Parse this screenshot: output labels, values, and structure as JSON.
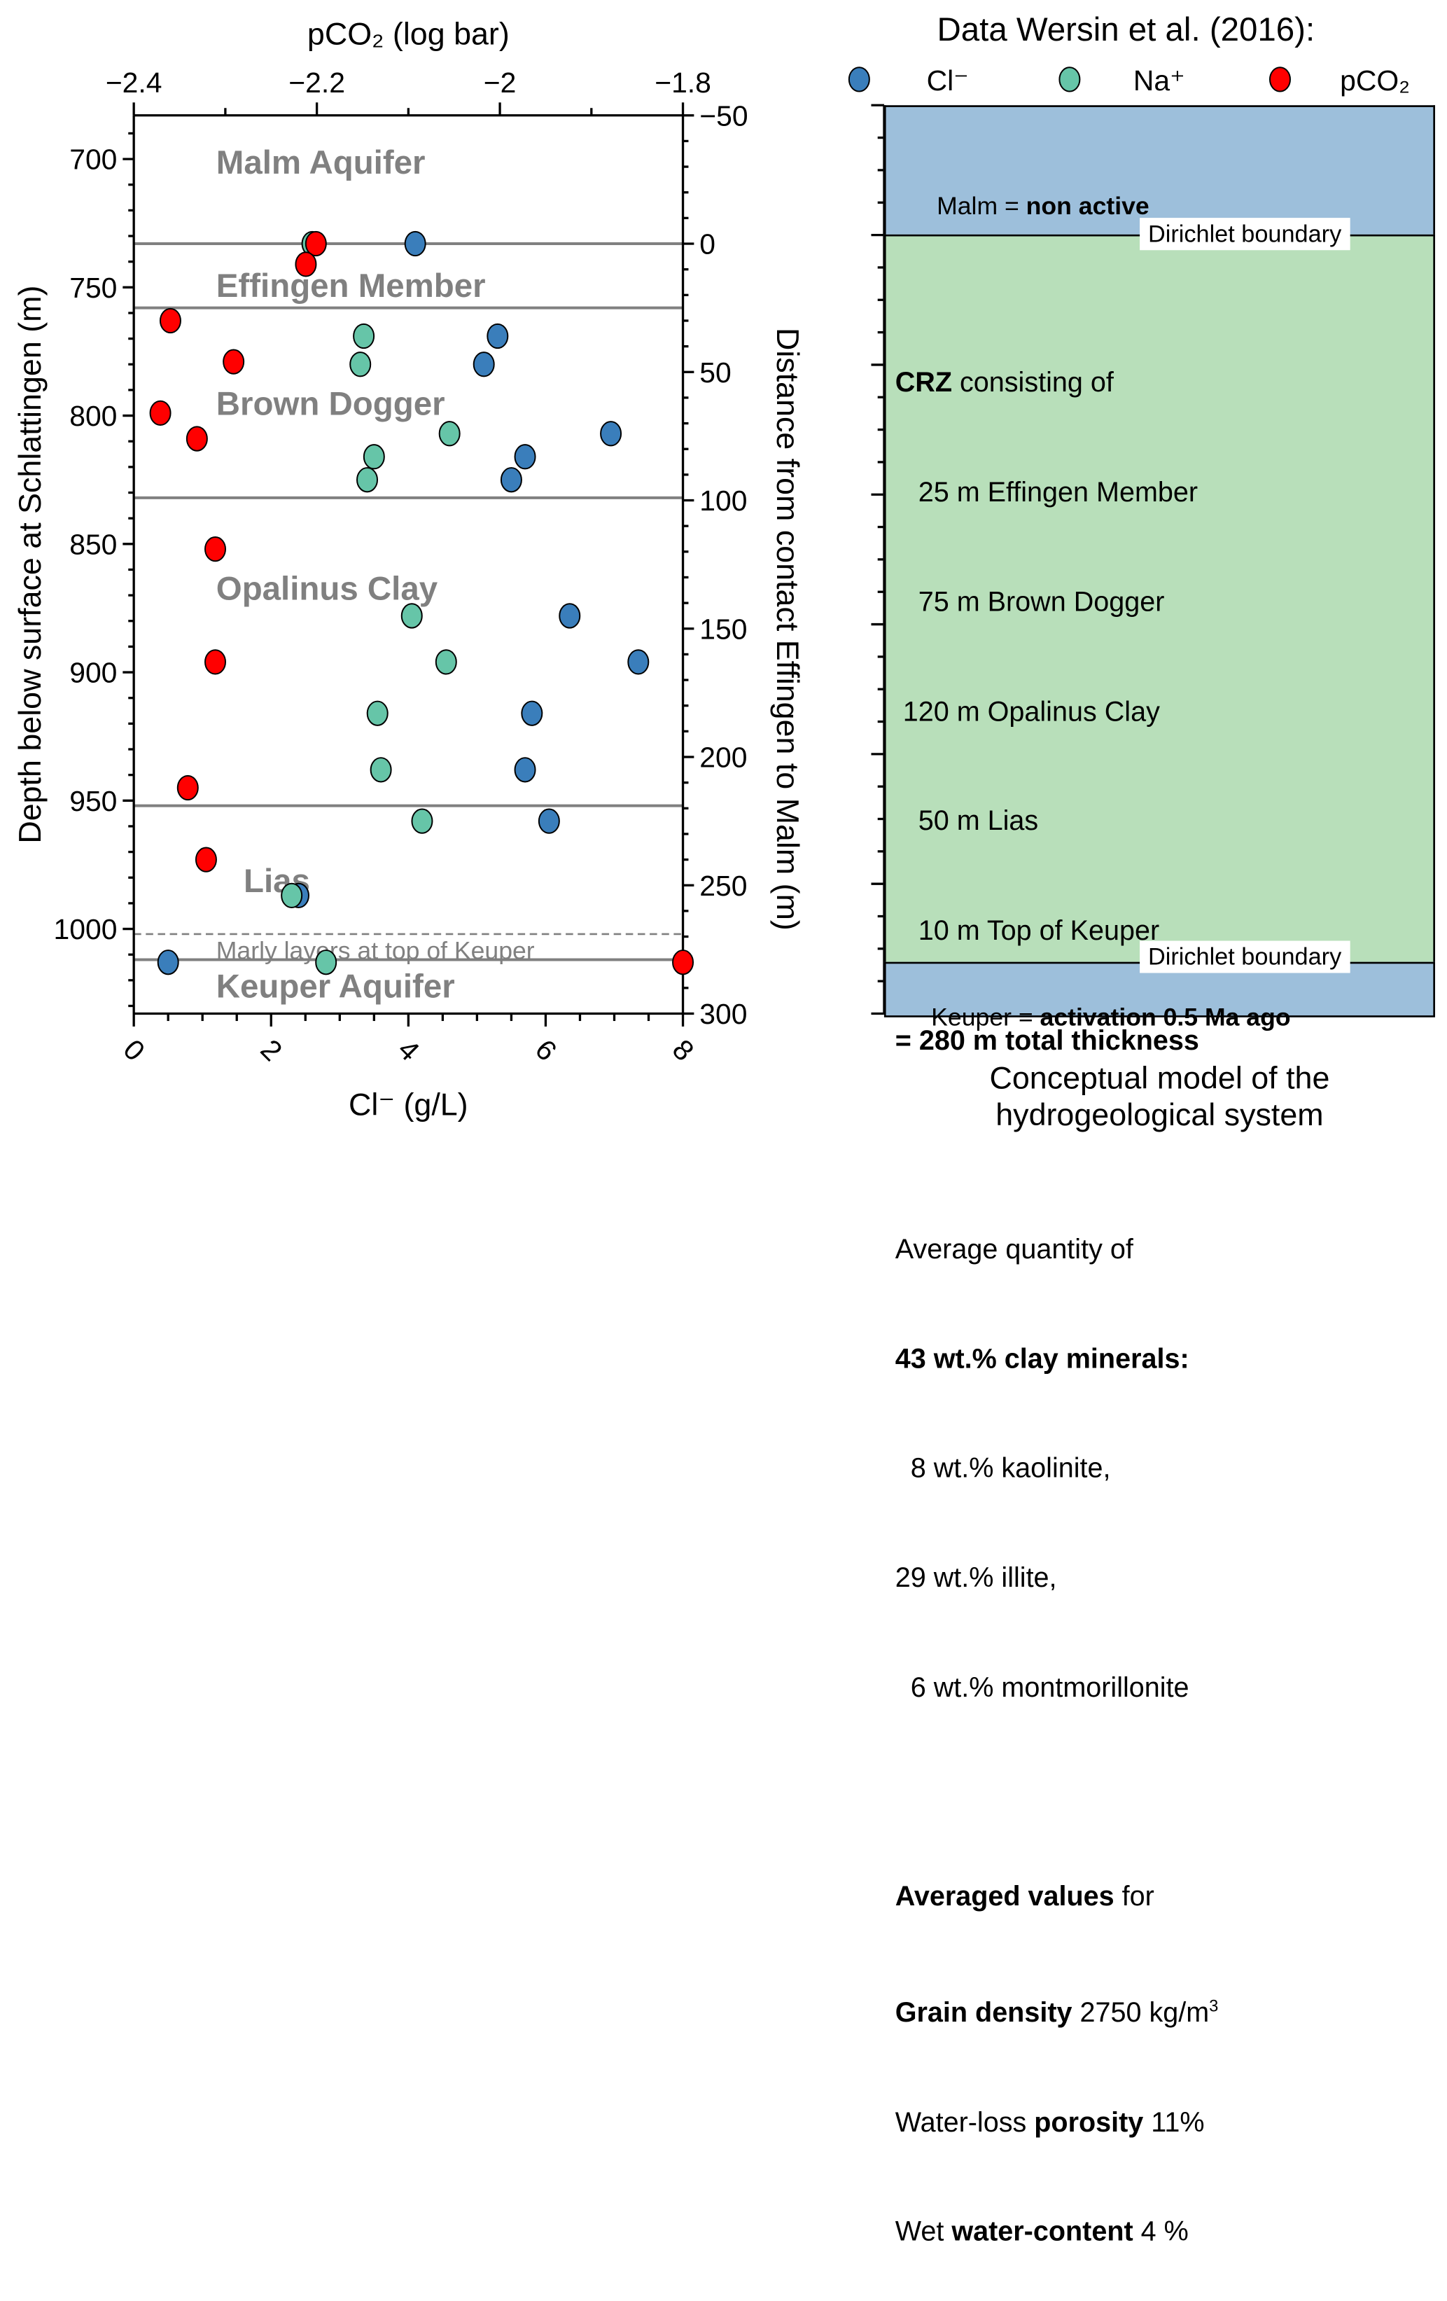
{
  "chart_data": {
    "type": "scatter",
    "title": "",
    "xlabel_bottom": "Cl⁻ (g/L)",
    "xlabel_top": "pCO₂ (log bar)",
    "ylabel_left": "Depth below surface at Schlattingen (m)",
    "ylabel_right": "Distance from contact Effingen to Malm (m)",
    "x_bottom_range": [
      0,
      8
    ],
    "x_bottom_ticks": [
      "0",
      "2",
      "4",
      "6",
      "8"
    ],
    "x_top_range": [
      -2.4,
      -1.8
    ],
    "x_top_ticks": [
      "−2.4",
      "−2.2",
      "−2",
      "−1.8"
    ],
    "y_left_range": [
      1033,
      683
    ],
    "y_left_ticks": [
      "700",
      "750",
      "800",
      "850",
      "900",
      "950",
      "1000"
    ],
    "y_right_ticks": [
      "−50",
      "0",
      "50",
      "100",
      "150",
      "200",
      "250",
      "300"
    ],
    "y_right_offset_depth": 733,
    "grid": false,
    "legend_title": "Data Wersin et al. (2016):",
    "legend_position": "top-right",
    "legend": [
      {
        "label": "Cl⁻",
        "color": "#3a7ebb"
      },
      {
        "label": "Na⁺",
        "color": "#66c5a8"
      },
      {
        "label": "pCO₂",
        "color": "#ff0000"
      }
    ],
    "series": [
      {
        "name": "Cl⁻",
        "axis": "bottom",
        "color": "#3a7ebb",
        "points": [
          [
            4.1,
            733
          ],
          [
            5.3,
            769
          ],
          [
            5.1,
            780
          ],
          [
            6.95,
            807
          ],
          [
            5.7,
            816
          ],
          [
            5.5,
            825
          ],
          [
            6.35,
            878
          ],
          [
            7.35,
            896
          ],
          [
            5.8,
            916
          ],
          [
            5.7,
            938
          ],
          [
            6.05,
            958
          ],
          [
            2.4,
            987
          ],
          [
            0.5,
            1013
          ]
        ]
      },
      {
        "name": "Na⁺",
        "axis": "bottom",
        "color": "#66c5a8",
        "points": [
          [
            2.6,
            733
          ],
          [
            3.35,
            769
          ],
          [
            3.3,
            780
          ],
          [
            4.6,
            807
          ],
          [
            3.5,
            816
          ],
          [
            3.4,
            825
          ],
          [
            4.05,
            878
          ],
          [
            4.55,
            896
          ],
          [
            3.55,
            916
          ],
          [
            3.6,
            938
          ],
          [
            4.2,
            958
          ],
          [
            2.3,
            987
          ],
          [
            2.8,
            1013
          ]
        ]
      },
      {
        "name": "pCO₂",
        "axis": "top",
        "color": "#ff0000",
        "points": [
          [
            -2.201,
            733
          ],
          [
            -2.212,
            741
          ],
          [
            -2.36,
            763
          ],
          [
            -2.291,
            779
          ],
          [
            -2.371,
            799
          ],
          [
            -2.331,
            809
          ],
          [
            -2.311,
            852
          ],
          [
            -2.311,
            896
          ],
          [
            -2.341,
            945
          ],
          [
            -2.321,
            973
          ],
          [
            -1.8,
            1013
          ]
        ]
      }
    ],
    "boundaries": [
      {
        "depth": 733,
        "style": "solid"
      },
      {
        "depth": 758,
        "style": "solid"
      },
      {
        "depth": 832,
        "style": "solid"
      },
      {
        "depth": 952,
        "style": "solid"
      },
      {
        "depth": 1002,
        "style": "dashed"
      },
      {
        "depth": 1012,
        "style": "solid"
      }
    ],
    "formation_labels": [
      {
        "text": "Malm Aquifer",
        "depth": 701,
        "x": 1.2,
        "bold": true
      },
      {
        "text": "Effingen Member",
        "depth": 749,
        "x": 1.2,
        "bold": true
      },
      {
        "text": "Brown Dogger",
        "depth": 795,
        "x": 1.2,
        "bold": true
      },
      {
        "text": "Opalinus Clay",
        "depth": 867,
        "x": 1.2,
        "bold": true
      },
      {
        "text": "Lias",
        "depth": 981,
        "x": 1.6,
        "bold": true
      },
      {
        "text": "Marly layers at top of Keuper",
        "depth": 1007,
        "x": 1.2,
        "bold": false
      },
      {
        "text": "Keuper Aquifer",
        "depth": 1022,
        "x": 1.2,
        "bold": true
      }
    ]
  },
  "model_panel": {
    "caption_line1": "Conceptual model of the",
    "caption_line2": "hydrogeological system",
    "dirichlet_label": "Dirichlet boundary",
    "top_zone": {
      "prefix": "Malm = ",
      "bold": "non active",
      "color": "#9dbfdb"
    },
    "middle_zone": {
      "color": "#b8dfba",
      "crz_bold": "CRZ",
      "crz_rest": " consisting of",
      "layers": [
        "   25 m Effingen Member",
        "   75 m Brown Dogger",
        " 120 m Opalinus Clay",
        "   50 m Lias",
        "   10 m Top of Keuper"
      ],
      "total": "= 280 m total thickness",
      "avg_qty": "Average quantity of",
      "clay_bold": "43 wt.% clay minerals:",
      "minerals": [
        "  8 wt.% kaolinite,",
        "29 wt.% illite,",
        "  6 wt.% montmorillonite"
      ],
      "averaged_bold": "Averaged values",
      "averaged_rest": " for",
      "grain_bold": "Grain density",
      "grain_rest": " 2750 kg/m",
      "grain_sup": "3",
      "porosity_pre": "Water-loss ",
      "porosity_bold": "porosity",
      "porosity_rest": " 11%",
      "water_pre": "Wet ",
      "water_bold": "water-content",
      "water_rest": " 4 %"
    },
    "bottom_zone": {
      "prefix": "Keuper = ",
      "bold": "activation 0.5 Ma ago",
      "color": "#9dbfdb"
    }
  }
}
